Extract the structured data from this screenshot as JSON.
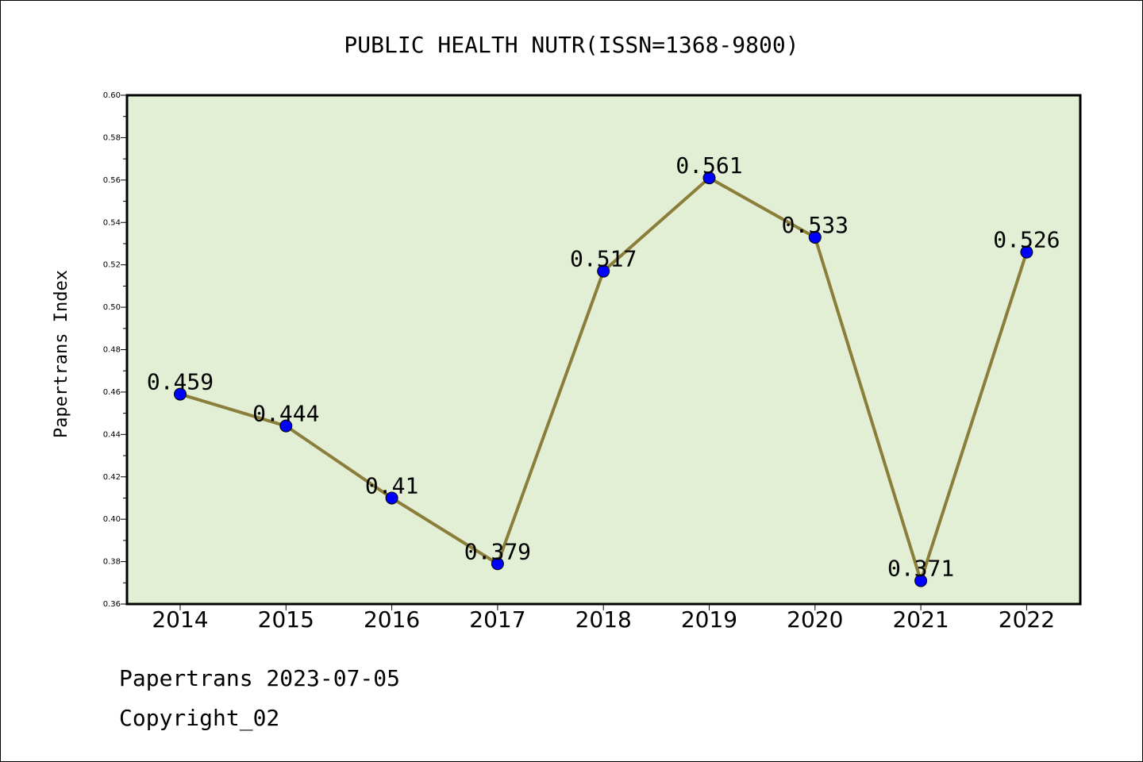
{
  "chart_data": {
    "type": "line",
    "title": "PUBLIC HEALTH NUTR(ISSN=1368-9800)",
    "xlabel": "",
    "ylabel": "Papertrans Index",
    "categories": [
      "2014",
      "2015",
      "2016",
      "2017",
      "2018",
      "2019",
      "2020",
      "2021",
      "2022"
    ],
    "series": [
      {
        "values": [
          0.459,
          0.444,
          0.41,
          0.379,
          0.517,
          0.561,
          0.533,
          0.371,
          0.526
        ],
        "data_labels": [
          "0.459",
          "0.444",
          "0.41",
          "0.379",
          "0.517",
          "0.561",
          "0.533",
          "0.371",
          "0.526"
        ]
      }
    ],
    "ylim": [
      0.36,
      0.6
    ],
    "yticks": [
      "0.36",
      "0.38",
      "0.40",
      "0.42",
      "0.44",
      "0.46",
      "0.48",
      "0.50",
      "0.52",
      "0.54",
      "0.56",
      "0.58",
      "0.60"
    ],
    "grid": false,
    "legend": "none",
    "colors": {
      "plot_background": "#e2efd5",
      "line": "#8b7d3a",
      "marker": "#0000ff"
    }
  },
  "footer": {
    "line1": "Papertrans 2023-07-05",
    "line2": "Copyright_02"
  }
}
